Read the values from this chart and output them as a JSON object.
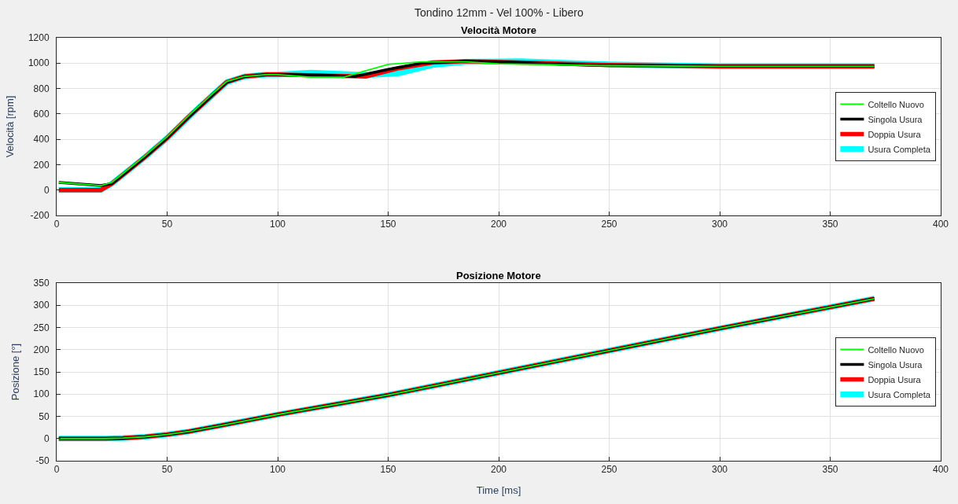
{
  "chart_data": [
    {
      "type": "line",
      "title": "Tondino 12mm - Vel 100% - Libero",
      "subtitle": "Velocità Motore",
      "ylabel": "Velocità [rpm]",
      "xlim": [
        0,
        400
      ],
      "xticks": [
        0,
        50,
        100,
        150,
        200,
        250,
        300,
        350,
        400
      ],
      "ylim": [
        -200,
        1200
      ],
      "yticks": [
        -200,
        0,
        200,
        400,
        600,
        800,
        1000,
        1200
      ],
      "grid": true,
      "legend": "right",
      "series": [
        {
          "name": "Usura Completa",
          "color": "#00ffff",
          "x": [
            1,
            20,
            25,
            30,
            40,
            50,
            60,
            70,
            77,
            85,
            95,
            100,
            115,
            130,
            140,
            155,
            170,
            185,
            210,
            250,
            300,
            370
          ],
          "values": [
            0,
            0,
            50,
            120,
            260,
            410,
            580,
            740,
            850,
            895,
            910,
            910,
            925,
            915,
            905,
            920,
            985,
            1010,
            1015,
            990,
            975,
            975
          ]
        },
        {
          "name": "Doppia Usura",
          "color": "#ff0000",
          "x": [
            1,
            20,
            25,
            30,
            40,
            50,
            60,
            70,
            77,
            85,
            95,
            100,
            125,
            140,
            155,
            170,
            185,
            210,
            250,
            300,
            370
          ],
          "values": [
            0,
            0,
            50,
            120,
            260,
            410,
            580,
            740,
            850,
            895,
            910,
            910,
            900,
            895,
            960,
            1005,
            1015,
            1005,
            985,
            975,
            975
          ]
        },
        {
          "name": "Singola Usura",
          "color": "#000000",
          "x": [
            1,
            20,
            25,
            30,
            40,
            50,
            60,
            70,
            77,
            85,
            95,
            100,
            120,
            135,
            150,
            165,
            185,
            200,
            240,
            300,
            370
          ],
          "values": [
            60,
            35,
            50,
            120,
            260,
            410,
            580,
            740,
            850,
            895,
            910,
            910,
            905,
            895,
            950,
            1000,
            1015,
            1010,
            985,
            975,
            975
          ]
        },
        {
          "name": "Coltello Nuovo",
          "color": "#00ff00",
          "x": [
            1,
            20,
            25,
            30,
            40,
            50,
            60,
            70,
            77,
            85,
            95,
            100,
            115,
            130,
            140,
            150,
            165,
            185,
            200,
            250,
            300,
            370
          ],
          "values": [
            60,
            35,
            60,
            130,
            270,
            420,
            590,
            750,
            855,
            895,
            910,
            910,
            890,
            890,
            940,
            990,
            1010,
            1010,
            995,
            980,
            975,
            975
          ]
        }
      ]
    },
    {
      "type": "line",
      "title": "Posizione Motore",
      "xlabel": "Time [ms]",
      "ylabel": "Posizione [°]",
      "xlim": [
        0,
        400
      ],
      "xticks": [
        0,
        50,
        100,
        150,
        200,
        250,
        300,
        350,
        400
      ],
      "ylim": [
        -50,
        350
      ],
      "yticks": [
        -50,
        0,
        50,
        100,
        150,
        200,
        250,
        300,
        350
      ],
      "grid": true,
      "legend": "right",
      "series": [
        {
          "name": "Usura Completa",
          "color": "#00ffff",
          "x": [
            1,
            22,
            30,
            40,
            50,
            60,
            75,
            100,
            150,
            200,
            250,
            300,
            370
          ],
          "values": [
            0,
            0,
            1,
            4,
            9,
            16,
            30,
            54,
            98,
            148,
            198,
            248,
            315
          ]
        },
        {
          "name": "Doppia Usura",
          "color": "#ff0000",
          "x": [
            1,
            22,
            30,
            40,
            50,
            60,
            75,
            100,
            150,
            200,
            250,
            300,
            370
          ],
          "values": [
            0,
            0,
            1,
            4,
            9,
            16,
            30,
            54,
            98,
            148,
            198,
            248,
            315
          ]
        },
        {
          "name": "Singola Usura",
          "color": "#000000",
          "x": [
            1,
            22,
            30,
            40,
            50,
            60,
            75,
            100,
            150,
            200,
            250,
            300,
            370
          ],
          "values": [
            0,
            0,
            1,
            4,
            9,
            16,
            30,
            54,
            98,
            148,
            198,
            248,
            315
          ]
        },
        {
          "name": "Coltello Nuovo",
          "color": "#00ff00",
          "x": [
            1,
            22,
            30,
            40,
            50,
            60,
            75,
            100,
            150,
            200,
            250,
            300,
            370
          ],
          "values": [
            0,
            0,
            1,
            4,
            9,
            16,
            30,
            54,
            98,
            148,
            198,
            248,
            315
          ]
        }
      ]
    }
  ]
}
